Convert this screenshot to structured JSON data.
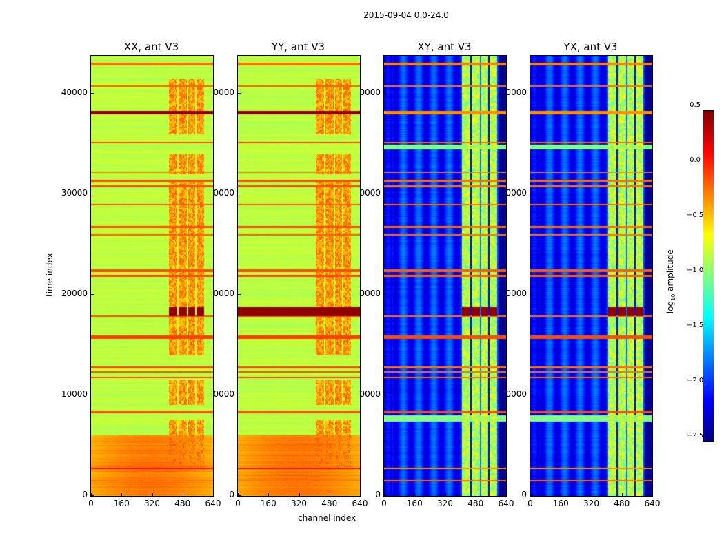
{
  "chart_data": {
    "type": "heatmap",
    "title": "2015-09-04 0.0-24.0",
    "xlabel": "channel index",
    "ylabel": "time index",
    "xlim": [
      0,
      640
    ],
    "ylim": [
      0,
      43800
    ],
    "xticks": [
      "0",
      "160",
      "320",
      "480",
      "640"
    ],
    "yticks": [
      "0",
      "10000",
      "20000",
      "30000",
      "40000"
    ],
    "panels": [
      {
        "title": "XX, ant V3",
        "kind": "auto",
        "base": -0.85,
        "low_time_base": -0.4,
        "rfi_level": -0.45
      },
      {
        "title": "YY, ant V3",
        "kind": "auto",
        "base": -0.85,
        "low_time_base": -0.4,
        "rfi_level": -0.45
      },
      {
        "title": "XY, ant V3",
        "kind": "cross",
        "base": -2.05,
        "low_time_base": -2.05,
        "rfi_level": -1.05
      },
      {
        "title": "YX, ant V3",
        "kind": "cross",
        "base": -2.05,
        "low_time_base": -2.05,
        "rfi_level": -1.05
      }
    ],
    "rfi_channel_ranges": [
      [
        405,
        450
      ],
      [
        458,
        500
      ],
      [
        508,
        545
      ],
      [
        552,
        590
      ]
    ],
    "rfi_active_times": [
      [
        2500,
        7500
      ],
      [
        9000,
        11500
      ],
      [
        14000,
        31500
      ],
      [
        32000,
        34000
      ],
      [
        36000,
        41500
      ]
    ],
    "horizontal_bands": [
      {
        "t": 1500,
        "w": 150,
        "auto": -0.2,
        "cross": -0.2
      },
      {
        "t": 2700,
        "w": 120,
        "auto": 0.1,
        "cross": -0.3
      },
      {
        "t": 8300,
        "w": 250,
        "auto": -0.1,
        "cross": -0.1
      },
      {
        "t": 11800,
        "w": 150,
        "auto": -0.1,
        "cross": -0.2
      },
      {
        "t": 12300,
        "w": 150,
        "auto": -0.1,
        "cross": -0.2
      },
      {
        "t": 12800,
        "w": 200,
        "auto": -0.1,
        "cross": -0.2
      },
      {
        "t": 15800,
        "w": 300,
        "auto": -0.05,
        "cross": -0.1
      },
      {
        "t": 17900,
        "w": 120,
        "auto": -0.1,
        "cross": -0.2
      },
      {
        "t": 18300,
        "w": 900,
        "auto": 0.45,
        "cross": 0.45,
        "rfi_only": true
      },
      {
        "t": 21900,
        "w": 250,
        "auto": -0.1,
        "cross": -0.15
      },
      {
        "t": 22400,
        "w": 250,
        "auto": -0.1,
        "cross": -0.15
      },
      {
        "t": 26000,
        "w": 150,
        "auto": -0.15,
        "cross": -0.2
      },
      {
        "t": 26800,
        "w": 200,
        "auto": -0.1,
        "cross": -0.2
      },
      {
        "t": 29000,
        "w": 150,
        "auto": -0.15,
        "cross": -0.2
      },
      {
        "t": 30800,
        "w": 200,
        "auto": -0.1,
        "cross": -0.2
      },
      {
        "t": 31400,
        "w": 200,
        "auto": -0.1,
        "cross": -0.2
      },
      {
        "t": 32200,
        "w": 120,
        "auto": -0.2,
        "cross": -0.25
      },
      {
        "t": 35200,
        "w": 150,
        "auto": -0.1,
        "cross": -0.2
      },
      {
        "t": 38200,
        "w": 350,
        "auto": 0.45,
        "cross": -0.3
      },
      {
        "t": 40800,
        "w": 150,
        "auto": -0.15,
        "cross": -0.2
      },
      {
        "t": 43000,
        "w": 300,
        "auto": -0.2,
        "cross": -0.25
      }
    ],
    "colorbar": {
      "label": "log10 amplitude",
      "label_base": "log",
      "label_sub": "10",
      "label_rest": " amplitude",
      "range": [
        -2.5,
        0.5
      ],
      "ticks": [
        "0.5",
        "0.0",
        "−0.5",
        "−1.0",
        "−1.5",
        "−2.0",
        "−2.5"
      ],
      "tick_values": [
        0.5,
        0.0,
        -0.5,
        -1.0,
        -1.5,
        -2.0,
        -2.5
      ],
      "colormap": "jet"
    }
  }
}
